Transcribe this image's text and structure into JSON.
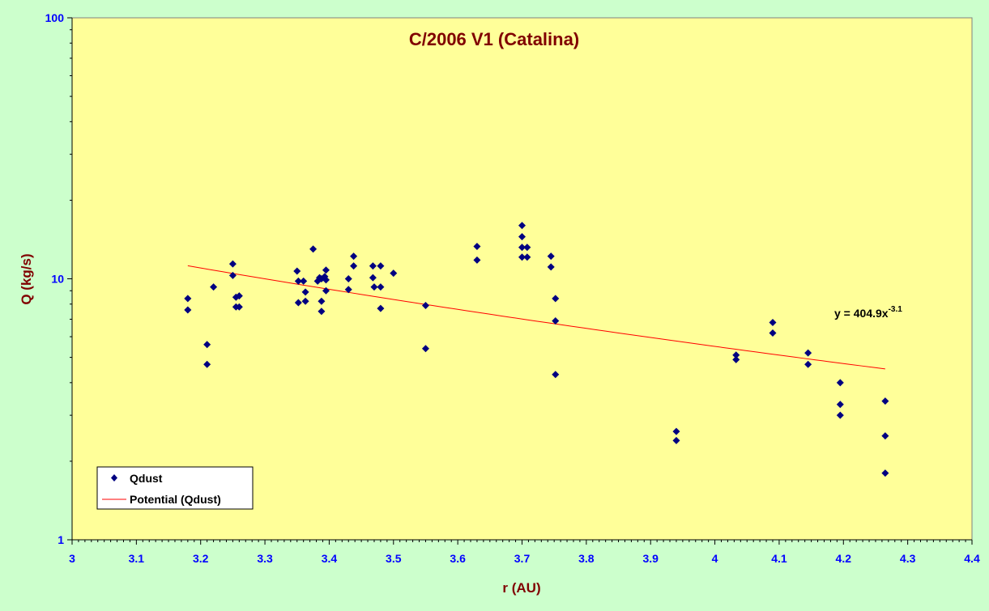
{
  "colors": {
    "page_background": "#ccffcc",
    "plot_background": "#ffff99",
    "title": "#800000",
    "axis_label": "#800000",
    "tick_label": "#0000ff",
    "marker": "#000080",
    "trendline": "#ff0000",
    "annotation": "#000000"
  },
  "chart_data": {
    "type": "scatter",
    "title": "C/2006 V1 (Catalina)",
    "xlabel": "r (AU)",
    "ylabel": "Q (kg/s)",
    "xlim": [
      3,
      4.4
    ],
    "ylim": [
      1,
      100
    ],
    "yscale": "log",
    "x_ticks": [
      "3",
      "3.1",
      "3.2",
      "3.3",
      "3.4",
      "3.5",
      "3.6",
      "3.7",
      "3.8",
      "3.9",
      "4",
      "4.1",
      "4.2",
      "4.3",
      "4.4"
    ],
    "y_ticks": [
      "1",
      "10",
      "100"
    ],
    "grid": false,
    "legend_position": "bottom-left",
    "legend": {
      "scatter_label": "Qdust",
      "trend_label": "Potential (Qdust)"
    },
    "annotation": {
      "base": "y = 404.9x",
      "exponent": "-3.1"
    },
    "trendline": {
      "type": "power",
      "coefficient": 404.9,
      "exponent": -3.1,
      "x_start": 3.18,
      "x_end": 4.265
    },
    "series": [
      {
        "name": "Qdust",
        "points": [
          [
            3.18,
            8.4
          ],
          [
            3.18,
            7.6
          ],
          [
            3.21,
            5.6
          ],
          [
            3.21,
            4.7
          ],
          [
            3.22,
            9.3
          ],
          [
            3.25,
            11.4
          ],
          [
            3.25,
            10.3
          ],
          [
            3.255,
            8.5
          ],
          [
            3.255,
            7.8
          ],
          [
            3.26,
            8.6
          ],
          [
            3.26,
            7.8
          ],
          [
            3.35,
            10.7
          ],
          [
            3.352,
            9.8
          ],
          [
            3.352,
            8.1
          ],
          [
            3.36,
            9.8
          ],
          [
            3.363,
            8.9
          ],
          [
            3.363,
            8.2
          ],
          [
            3.375,
            13.0
          ],
          [
            3.382,
            9.8
          ],
          [
            3.385,
            10.1
          ],
          [
            3.388,
            10.0
          ],
          [
            3.388,
            8.2
          ],
          [
            3.388,
            7.5
          ],
          [
            3.393,
            10.2
          ],
          [
            3.395,
            10.8
          ],
          [
            3.395,
            9.9
          ],
          [
            3.395,
            9.0
          ],
          [
            3.43,
            10.0
          ],
          [
            3.43,
            9.1
          ],
          [
            3.438,
            12.2
          ],
          [
            3.438,
            11.2
          ],
          [
            3.468,
            11.2
          ],
          [
            3.468,
            10.1
          ],
          [
            3.47,
            9.3
          ],
          [
            3.48,
            11.2
          ],
          [
            3.48,
            9.3
          ],
          [
            3.48,
            7.7
          ],
          [
            3.5,
            10.5
          ],
          [
            3.55,
            7.9
          ],
          [
            3.55,
            5.4
          ],
          [
            3.63,
            13.3
          ],
          [
            3.63,
            11.8
          ],
          [
            3.7,
            16.0
          ],
          [
            3.7,
            14.5
          ],
          [
            3.7,
            13.2
          ],
          [
            3.7,
            12.1
          ],
          [
            3.708,
            13.2
          ],
          [
            3.708,
            12.1
          ],
          [
            3.745,
            12.2
          ],
          [
            3.745,
            11.1
          ],
          [
            3.752,
            8.4
          ],
          [
            3.752,
            6.9
          ],
          [
            3.752,
            4.3
          ],
          [
            3.94,
            2.6
          ],
          [
            3.94,
            2.4
          ],
          [
            4.033,
            5.1
          ],
          [
            4.033,
            4.9
          ],
          [
            4.09,
            6.8
          ],
          [
            4.09,
            6.2
          ],
          [
            4.145,
            5.2
          ],
          [
            4.145,
            4.7
          ],
          [
            4.195,
            4.0
          ],
          [
            4.195,
            3.3
          ],
          [
            4.195,
            3.0
          ],
          [
            4.265,
            3.4
          ],
          [
            4.265,
            2.5
          ],
          [
            4.265,
            1.8
          ]
        ]
      }
    ]
  }
}
